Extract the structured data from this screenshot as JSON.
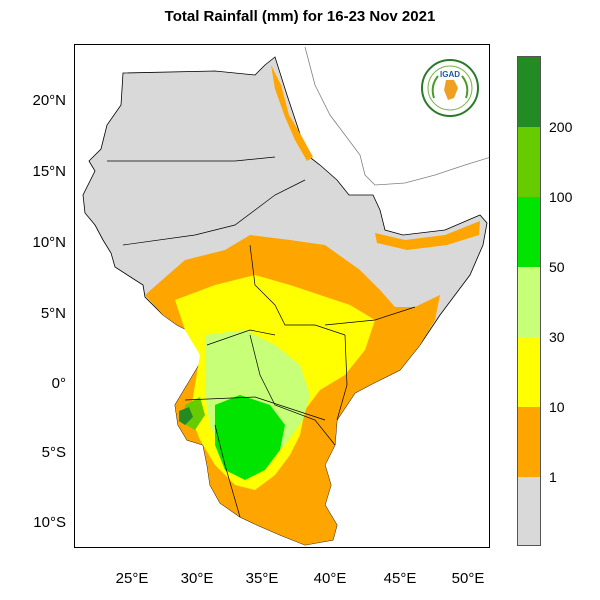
{
  "title": "Total Rainfall (mm) for 16-23 Nov 2021",
  "latitude_labels": [
    "20°N",
    "15°N",
    "10°N",
    "5°N",
    "0°",
    "5°S",
    "10°S"
  ],
  "longitude_labels": [
    "25°E",
    "30°E",
    "35°E",
    "40°E",
    "45°E",
    "50°E"
  ],
  "colorbar": {
    "labels": [
      "200",
      "100",
      "50",
      "30",
      "10",
      "1"
    ],
    "classes": [
      {
        "range": "> 200",
        "color": "#238b23"
      },
      {
        "range": "100-200",
        "color": "#66cc00"
      },
      {
        "range": "50-100",
        "color": "#00e400"
      },
      {
        "range": "30-50",
        "color": "#c8ff78"
      },
      {
        "range": "10-30",
        "color": "#ffff00"
      },
      {
        "range": "1-10",
        "color": "#ffa500"
      },
      {
        "range": "< 1",
        "color": "#d9d9d9"
      }
    ]
  },
  "logo": {
    "text": "IGAD"
  },
  "colors": {
    "dry": "#d9d9d9",
    "border": "#000000",
    "coast": "#808080"
  }
}
